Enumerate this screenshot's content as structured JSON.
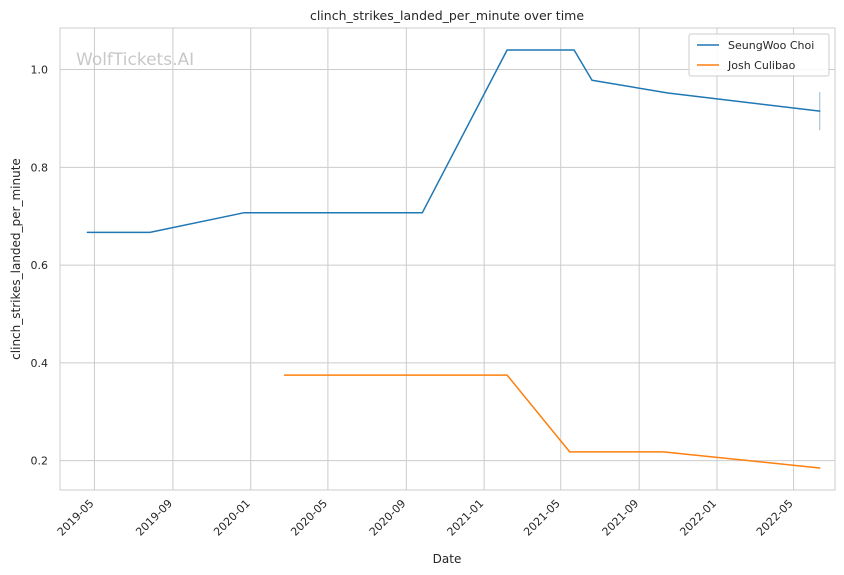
{
  "chart_data": {
    "type": "line",
    "title": "clinch_strikes_landed_per_minute over time",
    "xlabel": "Date",
    "ylabel": "clinch_strikes_landed_per_minute",
    "watermark": "WolfTickets.AI",
    "x_axis_type": "date",
    "xlim": [
      "2019-03-08",
      "2022-07-05"
    ],
    "ylim": [
      0.14,
      1.085
    ],
    "x_ticks": [
      "2019-05",
      "2019-09",
      "2020-01",
      "2020-05",
      "2020-09",
      "2021-01",
      "2021-05",
      "2021-09",
      "2022-01",
      "2022-05"
    ],
    "y_ticks": [
      0.2,
      0.4,
      0.6,
      0.8,
      1.0
    ],
    "y_tick_labels": [
      "0.2",
      "0.4",
      "0.6",
      "0.8",
      "1.0"
    ],
    "grid": true,
    "legend_position": "top-right",
    "series": [
      {
        "name": "SeungWoo Choi",
        "color": "#1f77b4",
        "x": [
          "2019-04-20",
          "2019-07-27",
          "2019-12-21",
          "2020-09-26",
          "2021-02-06",
          "2021-05-22",
          "2021-06-19",
          "2021-10-16",
          "2022-06-11"
        ],
        "y": [
          0.667,
          0.667,
          0.707,
          0.707,
          1.04,
          1.04,
          0.978,
          0.952,
          0.915
        ]
      },
      {
        "name": "Josh Culibao",
        "color": "#ff7f0e",
        "x": [
          "2020-02-23",
          "2021-02-06",
          "2021-05-15",
          "2021-10-09",
          "2022-06-11"
        ],
        "y": [
          0.375,
          0.375,
          0.218,
          0.218,
          0.185
        ]
      }
    ],
    "error_bar": {
      "series": "SeungWoo Choi",
      "x": "2022-06-11",
      "y_low": 0.876,
      "y_high": 0.954,
      "color": "#aac4dc"
    }
  }
}
